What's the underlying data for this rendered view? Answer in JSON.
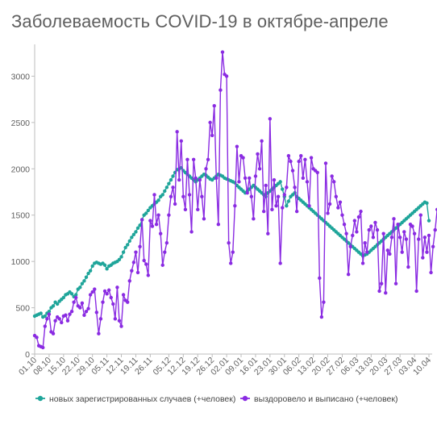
{
  "chart_data": {
    "type": "line",
    "title": "Заболеваемость COVID-19 в октябре-апреле",
    "xlabel": "",
    "ylabel": "",
    "ylim": [
      0,
      3300
    ],
    "yticks": [
      0,
      500,
      1000,
      1500,
      2000,
      2500,
      3000
    ],
    "start_date": "2020-10-01",
    "xtick_labels": [
      "01.10",
      "08.10",
      "15.10",
      "22.10",
      "29.10",
      "05.11",
      "12.11",
      "19.11",
      "26.11",
      "05.12",
      "12.12",
      "19.12",
      "26.12",
      "02.01",
      "09.01",
      "16.01",
      "23.01",
      "30.01",
      "06.02",
      "13.02",
      "20.02",
      "27.02",
      "06.03",
      "13.03",
      "20.03",
      "27.03",
      "03.04",
      "10.04"
    ],
    "xtick_day_index": [
      0,
      7,
      14,
      21,
      28,
      35,
      42,
      49,
      56,
      65,
      72,
      79,
      86,
      93,
      100,
      107,
      114,
      121,
      128,
      135,
      142,
      149,
      156,
      163,
      170,
      177,
      184,
      191
    ],
    "grid": false,
    "legend_position": "bottom",
    "series": [
      {
        "name": "новых зарегистрированных случаев (+человек)",
        "color": "#1fa59a",
        "values": [
          410,
          420,
          430,
          440,
          400,
          410,
          440,
          460,
          500,
          520,
          560,
          540,
          570,
          590,
          610,
          640,
          650,
          670,
          650,
          620,
          640,
          700,
          720,
          760,
          790,
          830,
          870,
          900,
          950,
          980,
          990,
          980,
          970,
          980,
          960,
          920,
          950,
          960,
          980,
          990,
          1000,
          1020,
          1050,
          1100,
          1150,
          1180,
          1220,
          1260,
          1290,
          1320,
          1360,
          1390,
          1450,
          1500,
          1520,
          1550,
          1580,
          1600,
          1620,
          1640,
          1660,
          1700,
          1720,
          1760,
          1800,
          1840,
          1880,
          1920,
          1960,
          1990,
          2000,
          2010,
          1980,
          1960,
          1940,
          1920,
          1900,
          1880,
          1860,
          1880,
          1900,
          1920,
          1940,
          1930,
          1910,
          1890,
          1880,
          1900,
          1920,
          1940,
          1930,
          1920,
          1900,
          1890,
          1880,
          1870,
          1860,
          1850,
          1820,
          1800,
          1780,
          1760,
          1740,
          1760,
          1780,
          1800,
          1820,
          1800,
          1780,
          1760,
          1740,
          1720,
          1700,
          1740,
          1760,
          1780,
          1800,
          1820,
          1840,
          1860,
          1780,
          1700,
          1600,
          1650,
          1700,
          1720,
          1740,
          1700,
          1680,
          1660,
          1640,
          1620,
          1600,
          1580,
          1560,
          1540,
          1520,
          1500,
          1480,
          1460,
          1440,
          1420,
          1400,
          1380,
          1360,
          1340,
          1320,
          1300,
          1280,
          1260,
          1240,
          1220,
          1200,
          1180,
          1160,
          1140,
          1120,
          1100,
          1080,
          1060,
          1070,
          1080,
          1100,
          1120,
          1140,
          1160,
          1180,
          1200,
          1220,
          1240,
          1260,
          1280,
          1300,
          1320,
          1340,
          1360,
          1380,
          1400,
          1420,
          1440,
          1460,
          1480,
          1500,
          1520,
          1540,
          1560,
          1580,
          1600,
          1620,
          1640,
          1630,
          1440
        ]
      },
      {
        "name": "выздоровело и выписано (+человек)",
        "color": "#8a2be2",
        "values": [
          200,
          180,
          90,
          80,
          70,
          300,
          380,
          430,
          240,
          220,
          360,
          400,
          380,
          340,
          410,
          420,
          360,
          430,
          460,
          560,
          610,
          520,
          500,
          550,
          420,
          460,
          490,
          640,
          670,
          700,
          450,
          220,
          380,
          560,
          680,
          650,
          690,
          610,
          540,
          380,
          720,
          360,
          300,
          640,
          580,
          560,
          790,
          900,
          990,
          1100,
          880,
          1160,
          1450,
          1010,
          970,
          850,
          1440,
          1380,
          1720,
          1400,
          1500,
          1300,
          960,
          1100,
          1200,
          1500,
          1700,
          1800,
          1620,
          2400,
          1880,
          2300,
          1700,
          1560,
          2100,
          1720,
          1320,
          2100,
          1900,
          1560,
          1880,
          1700,
          1460,
          2000,
          2100,
          2500,
          2360,
          2680,
          1900,
          1400,
          2850,
          3260,
          3020,
          3000,
          1200,
          980,
          1100,
          1600,
          2240,
          1860,
          2140,
          2120,
          1900,
          1740,
          1900,
          1700,
          1460,
          1920,
          2160,
          2000,
          2300,
          1540,
          1820,
          1300,
          2540,
          1560,
          1880,
          1600,
          1700,
          980,
          1580,
          1720,
          1800,
          2140,
          2080,
          1980,
          1800,
          1540,
          2080,
          2140,
          1900,
          2100,
          1860,
          1600,
          2120,
          2000,
          1980,
          1960,
          820,
          400,
          560,
          2060,
          1520,
          1620,
          1920,
          1860,
          1700,
          1580,
          1640,
          1500,
          1400,
          1300,
          860,
          1160,
          1280,
          1440,
          1320,
          1480,
          1540,
          980,
          1200,
          1100,
          1340,
          1380,
          1260,
          1420,
          1340,
          680,
          760,
          1300,
          660,
          1120,
          1080,
          1260,
          1460,
          760,
          1400,
          1260,
          1100,
          1320,
          1240,
          940,
          1400,
          1380,
          1300,
          680,
          1240,
          1500,
          1040,
          1260,
          1100,
          1280,
          880,
          1160,
          1340,
          1560,
          1280,
          1500,
          1320,
          1480,
          1200,
          1120,
          1400,
          1300,
          1380,
          1360,
          1420,
          1350
        ]
      }
    ]
  },
  "legend": {
    "item1_label": "новых зарегистрированных случаев (+человек)",
    "item2_label": "выздоровело и выписано (+человек)"
  }
}
